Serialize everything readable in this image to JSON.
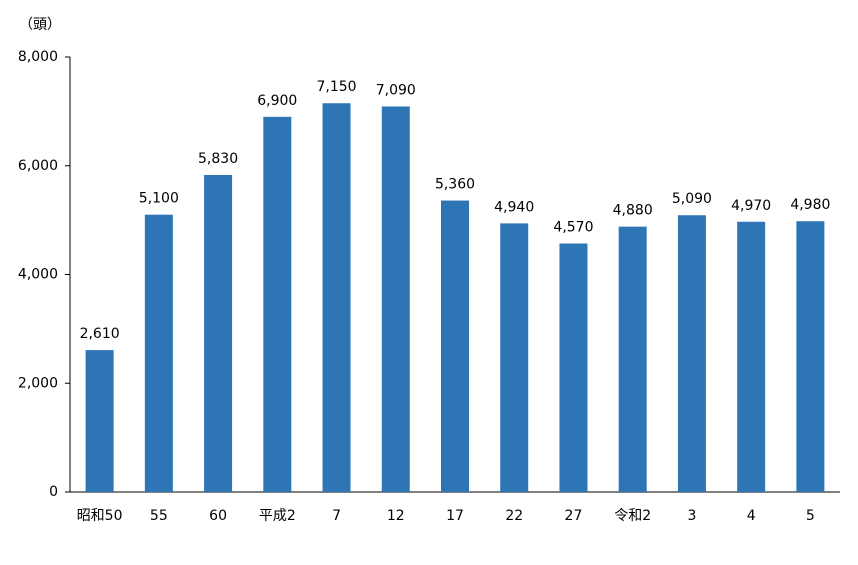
{
  "chart_data": {
    "type": "bar",
    "y_label": "（頭）",
    "categories": [
      "昭和50",
      "55",
      "60",
      "平成2",
      "7",
      "12",
      "17",
      "22",
      "27",
      "令和2",
      "3",
      "4",
      "5"
    ],
    "values": [
      2610,
      5100,
      5830,
      6900,
      7150,
      7090,
      5360,
      4940,
      4570,
      4880,
      5090,
      4970,
      4980
    ],
    "value_labels": [
      "2,610",
      "5,100",
      "5,830",
      "6,900",
      "7,150",
      "7,090",
      "5,360",
      "4,940",
      "4,570",
      "4,880",
      "5,090",
      "4,970",
      "4,980"
    ],
    "color": "#2e75b6",
    "ylim": [
      0,
      8000
    ],
    "yticks": [
      0,
      {
        "value": 2000,
        "label": "2,000"
      },
      {
        "value": 4000,
        "label": "4,000"
      },
      {
        "value": 6000,
        "label": "6,000"
      },
      {
        "value": 8000,
        "label": "8,000"
      }
    ],
    "grid": false
  }
}
